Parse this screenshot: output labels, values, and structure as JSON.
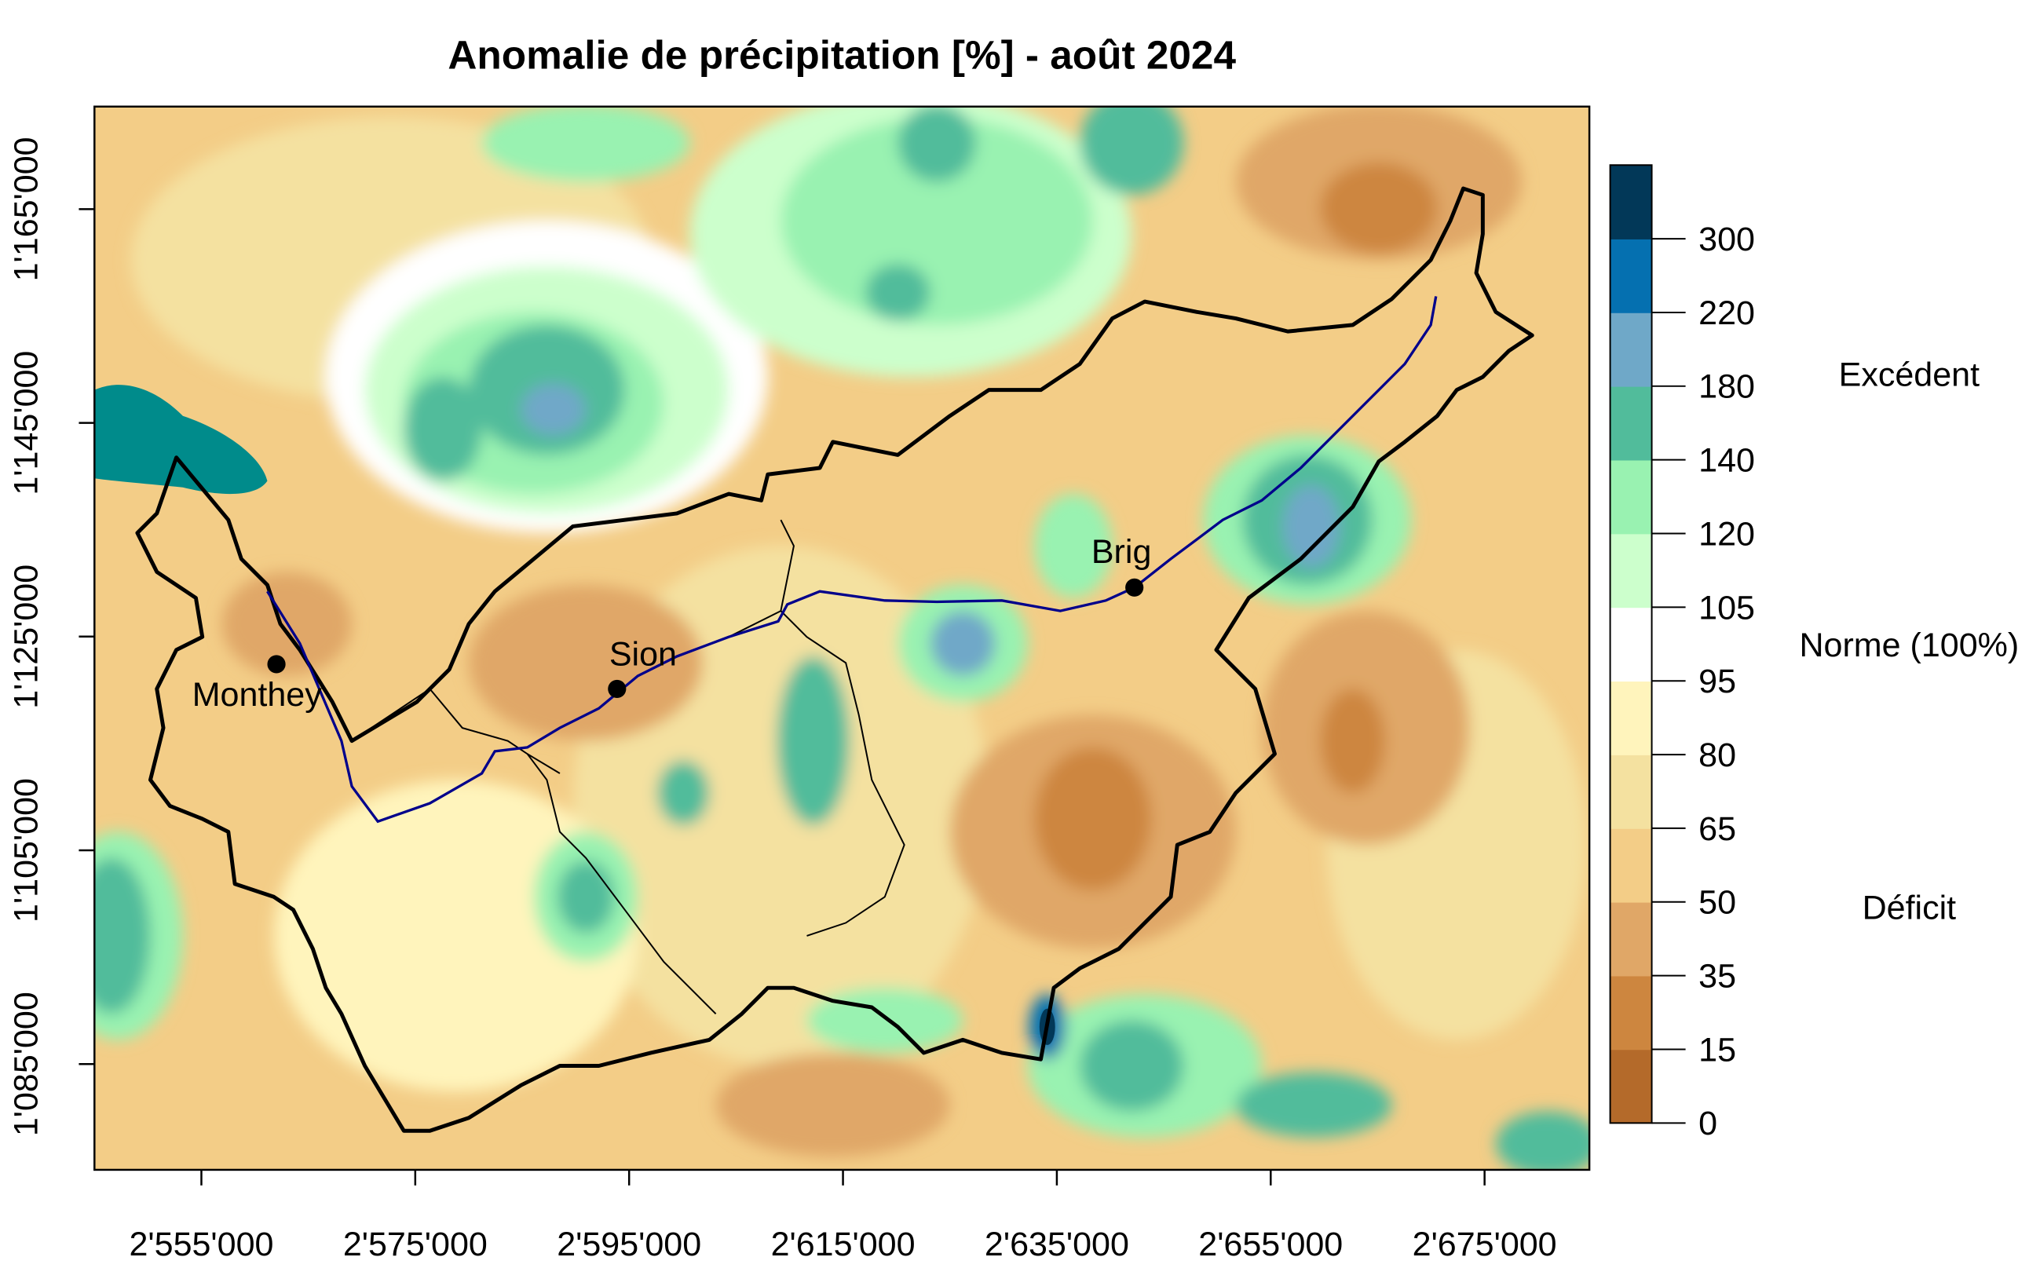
{
  "chart_data": {
    "type": "heatmap",
    "title": "Anomalie de précipitation [%] - août 2024",
    "xlabel": "",
    "ylabel": "",
    "x_ticks": [
      {
        "value": 2555000,
        "label": "2'555'000"
      },
      {
        "value": 2575000,
        "label": "2'575'000"
      },
      {
        "value": 2595000,
        "label": "2'595'000"
      },
      {
        "value": 2615000,
        "label": "2'615'000"
      },
      {
        "value": 2635000,
        "label": "2'635'000"
      },
      {
        "value": 2655000,
        "label": "2'655'000"
      },
      {
        "value": 2675000,
        "label": "2'675'000"
      }
    ],
    "y_ticks": [
      {
        "value": 1165000,
        "label": "1'165'000"
      },
      {
        "value": 1145000,
        "label": "1'145'000"
      },
      {
        "value": 1125000,
        "label": "1'125'000"
      },
      {
        "value": 1105000,
        "label": "1'105'000"
      },
      {
        "value": 1085000,
        "label": "1'085'000"
      }
    ],
    "xlim": [
      2545000,
      2684800
    ],
    "ylim": [
      1075100,
      1174600
    ],
    "legend": {
      "placement": "right",
      "breaks": [
        0,
        15,
        35,
        50,
        65,
        80,
        95,
        105,
        120,
        140,
        180,
        220,
        300
      ],
      "colors": [
        "#B46A2A",
        "#CD863F",
        "#E0A767",
        "#F3CD87",
        "#F4E1A0",
        "#FFF4BC",
        "#FFFFFF",
        "#CCFFCC",
        "#99F2B1",
        "#51BC9B",
        "#6FA8C8",
        "#0570B0",
        "#023858"
      ],
      "annotations": [
        {
          "label": "Excédent",
          "at": 180
        },
        {
          "label": "Norme (100%)",
          "at": 95
        },
        {
          "label": "Déficit",
          "at": 50
        }
      ]
    },
    "cities": [
      {
        "name": "Monthey",
        "x": 2562000,
        "y": 1122500
      },
      {
        "name": "Sion",
        "x": 2593900,
        "y": 1120200
      },
      {
        "name": "Brig",
        "x": 2641800,
        "y": 1129800
      }
    ]
  }
}
